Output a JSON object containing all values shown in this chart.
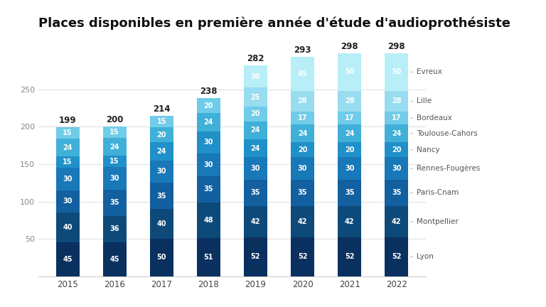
{
  "title": "Places disponibles en première année d'étude d'audioprothésiste",
  "years": [
    2015,
    2016,
    2017,
    2018,
    2019,
    2020,
    2021,
    2022
  ],
  "totals": [
    199,
    200,
    214,
    238,
    282,
    293,
    298,
    298
  ],
  "schools": [
    "Lyon",
    "Montpellier",
    "Paris-Cnam",
    "Rennes-Fougères",
    "Nancy",
    "Toulouse-Cahors",
    "Bordeaux",
    "Lille",
    "Evreux"
  ],
  "colors": [
    "#0a3060",
    "#0d4a7a",
    "#1260a0",
    "#1878b8",
    "#2090c8",
    "#40b0d8",
    "#70cce8",
    "#98dcf0",
    "#b8eef8"
  ],
  "data": {
    "Lyon": [
      45,
      45,
      50,
      51,
      52,
      52,
      52,
      52
    ],
    "Montpellier": [
      40,
      36,
      40,
      48,
      42,
      42,
      42,
      42
    ],
    "Paris-Cnam": [
      30,
      35,
      35,
      35,
      35,
      35,
      35,
      35
    ],
    "Rennes-Fougères": [
      30,
      30,
      30,
      30,
      30,
      30,
      30,
      30
    ],
    "Nancy": [
      15,
      15,
      24,
      30,
      24,
      20,
      20,
      20
    ],
    "Toulouse-Cahors": [
      24,
      24,
      20,
      24,
      24,
      24,
      24,
      24
    ],
    "Bordeaux": [
      15,
      15,
      15,
      20,
      20,
      17,
      17,
      17
    ],
    "Lille": [
      0,
      0,
      0,
      0,
      25,
      28,
      28,
      28
    ],
    "Evreux": [
      0,
      0,
      0,
      0,
      30,
      45,
      50,
      50
    ]
  },
  "background_color": "#ffffff",
  "bar_width": 0.5,
  "ylim": [
    0,
    320
  ],
  "yticks": [
    0,
    50,
    100,
    150,
    200,
    250
  ],
  "title_fontsize": 13,
  "label_fontsize": 7,
  "legend_fontsize": 7.5,
  "total_fontsize": 8.5
}
